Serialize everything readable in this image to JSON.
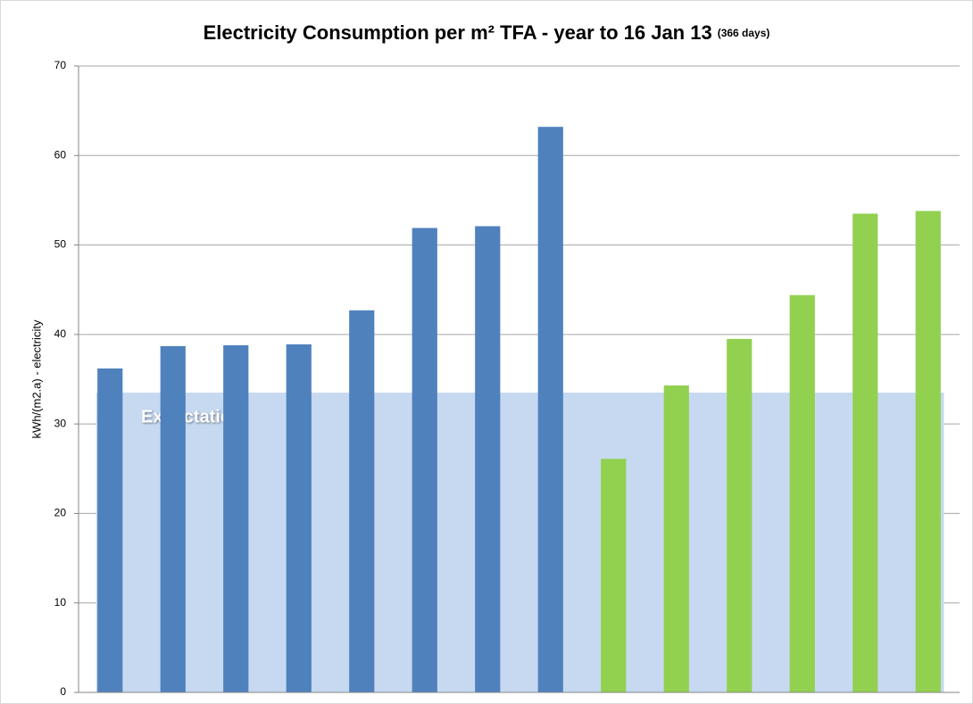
{
  "chart_data": {
    "type": "bar",
    "title": "Electricity Consumption per m² TFA - year to 16 Jan 13",
    "subtitle": "(366 days)",
    "y_label": "kWh/(m2.a) - electricity",
    "categories": [
      null,
      null,
      null,
      null,
      null,
      null,
      null,
      null,
      null,
      null,
      null,
      null,
      null,
      null
    ],
    "values": [
      36.2,
      38.7,
      38.8,
      38.9,
      42.7,
      51.9,
      52.1,
      63.2,
      26.1,
      34.3,
      39.5,
      44.4,
      53.5,
      53.8
    ],
    "colors": [
      "#4f81bd",
      "#4f81bd",
      "#4f81bd",
      "#4f81bd",
      "#4f81bd",
      "#4f81bd",
      "#4f81bd",
      "#4f81bd",
      "#92d050",
      "#92d050",
      "#92d050",
      "#92d050",
      "#92d050",
      "#92d050"
    ],
    "expectation": {
      "label": "Expectation",
      "value": 33.5,
      "color": "#c6d9f1"
    },
    "ylim": [
      0,
      70
    ],
    "yticks": [
      0,
      10,
      20,
      30,
      40,
      50,
      60,
      70
    ],
    "grid": true
  }
}
